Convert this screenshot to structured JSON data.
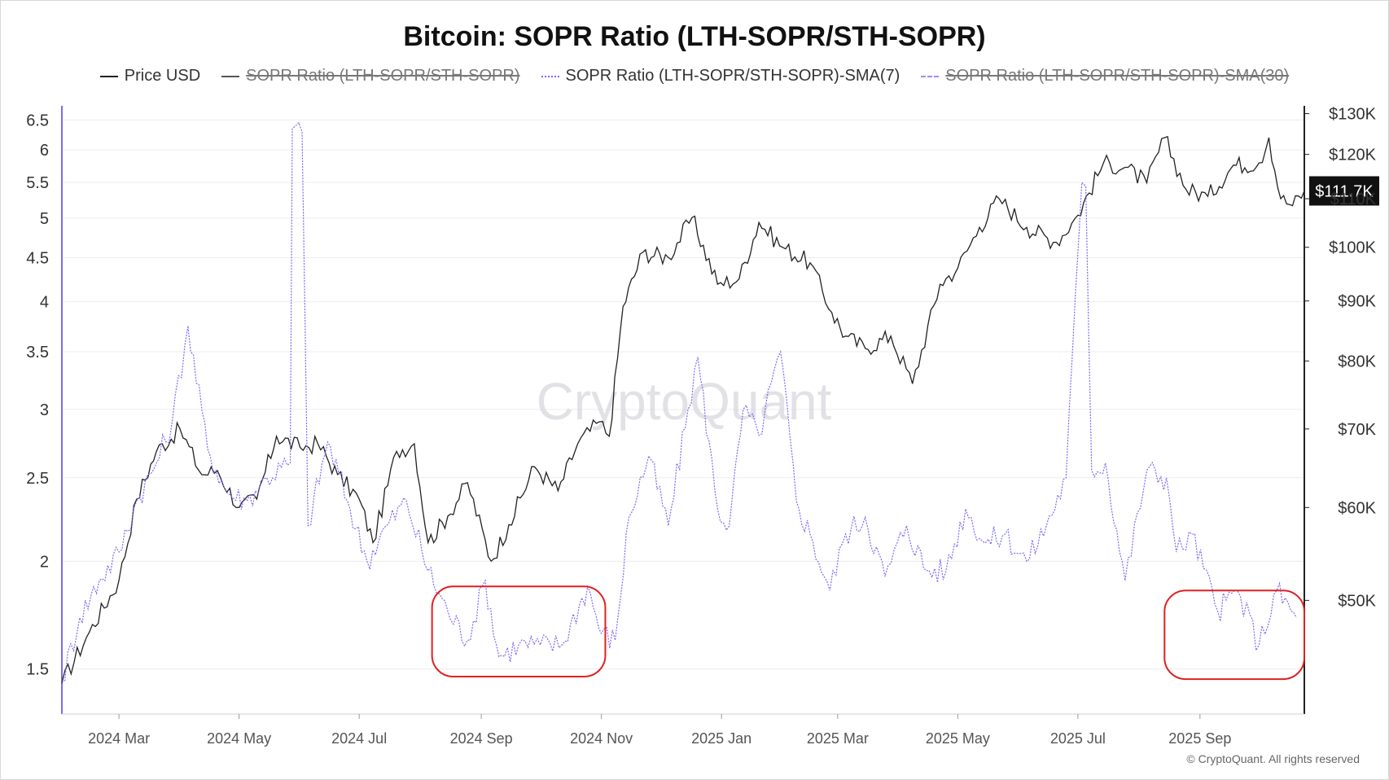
{
  "title": "Bitcoin: SOPR Ratio (LTH-SOPR/STH-SOPR)",
  "legend": [
    {
      "label": "Price USD",
      "style": "solid",
      "color": "#222222",
      "hidden": false
    },
    {
      "label": "SOPR Ratio (LTH-SOPR/STH-SOPR)",
      "style": "solid",
      "color": "#555555",
      "hidden": true
    },
    {
      "label": "SOPR Ratio (LTH-SOPR/STH-SOPR)-SMA(7)",
      "style": "dotted",
      "color": "#7b6cf0",
      "hidden": false
    },
    {
      "label": "SOPR Ratio (LTH-SOPR/STH-SOPR)-SMA(30)",
      "style": "dashed",
      "color": "#9a90f0",
      "hidden": true
    }
  ],
  "watermark": "CryptoQuant",
  "copyright": "© CryptoQuant. All rights reserved",
  "colors": {
    "price": "#222222",
    "sopr": "#7b6cf0",
    "highlight": "#e02020",
    "left_axis": "#7b6cf0",
    "right_axis": "#222222"
  },
  "chart_data": {
    "type": "line",
    "title": "Bitcoin: SOPR Ratio (LTH-SOPR/STH-SOPR)",
    "x_axis": {
      "tick_labels": [
        "2024 Mar",
        "2024 May",
        "2024 Jul",
        "2024 Sep",
        "2024 Nov",
        "2025 Jan",
        "2025 Mar",
        "2025 May",
        "2025 Jul",
        "2025 Sep"
      ],
      "tick_dates": [
        "2024-03-01",
        "2024-05-01",
        "2024-07-01",
        "2024-09-01",
        "2024-11-01",
        "2025-01-01",
        "2025-03-01",
        "2025-05-01",
        "2025-07-01",
        "2025-09-01"
      ],
      "range": [
        "2024-02-01",
        "2025-10-24"
      ]
    },
    "y_left": {
      "scale": "log",
      "range": [
        1.33,
        6.75
      ],
      "tick_labels": [
        "1.5",
        "2",
        "2.5",
        "3",
        "3.5",
        "4",
        "4.5",
        "5",
        "5.5",
        "6",
        "6.5"
      ],
      "tick_values": [
        1.5,
        2,
        2.5,
        3,
        3.5,
        4,
        4.5,
        5,
        5.5,
        6,
        6.5
      ]
    },
    "y_right": {
      "scale": "log",
      "range": [
        40000,
        132000
      ],
      "tick_labels": [
        "$50K",
        "$60K",
        "$70K",
        "$80K",
        "$90K",
        "$100K",
        "$110K",
        "$120K",
        "$130K"
      ],
      "tick_values": [
        50000,
        60000,
        70000,
        80000,
        90000,
        100000,
        110000,
        120000,
        130000
      ],
      "current_label": "$111.7K",
      "current_value": 111700
    },
    "grid": "horizontal",
    "legend_position": "top",
    "series": [
      {
        "name": "Price USD",
        "axis": "right",
        "x": [
          "2024-02-01",
          "2024-02-15",
          "2024-03-01",
          "2024-03-10",
          "2024-03-20",
          "2024-04-01",
          "2024-04-12",
          "2024-04-20",
          "2024-05-01",
          "2024-05-10",
          "2024-05-20",
          "2024-06-01",
          "2024-06-10",
          "2024-06-20",
          "2024-07-01",
          "2024-07-08",
          "2024-07-20",
          "2024-07-29",
          "2024-08-05",
          "2024-08-15",
          "2024-08-25",
          "2024-09-06",
          "2024-09-15",
          "2024-09-28",
          "2024-10-10",
          "2024-10-20",
          "2024-10-31",
          "2024-11-05",
          "2024-11-12",
          "2024-11-22",
          "2024-12-05",
          "2024-12-17",
          "2024-12-30",
          "2025-01-10",
          "2025-01-20",
          "2025-02-01",
          "2025-02-15",
          "2025-02-26",
          "2025-03-05",
          "2025-03-15",
          "2025-03-28",
          "2025-04-08",
          "2025-04-22",
          "2025-05-01",
          "2025-05-12",
          "2025-05-22",
          "2025-06-05",
          "2025-06-20",
          "2025-07-01",
          "2025-07-14",
          "2025-07-25",
          "2025-08-05",
          "2025-08-14",
          "2025-08-25",
          "2025-09-05",
          "2025-09-18",
          "2025-10-01",
          "2025-10-06",
          "2025-10-12",
          "2025-10-18",
          "2025-10-24"
        ],
        "values": [
          42500,
          47000,
          52000,
          61000,
          67000,
          70000,
          64000,
          64500,
          60000,
          61000,
          69000,
          67500,
          68000,
          64000,
          61000,
          56000,
          67000,
          68000,
          56000,
          59000,
          63000,
          54000,
          58000,
          65000,
          62000,
          68000,
          71000,
          69000,
          89000,
          99000,
          98000,
          106000,
          93000,
          94000,
          105000,
          100000,
          97000,
          88000,
          84000,
          82000,
          84000,
          76500,
          93000,
          96000,
          104000,
          110000,
          104000,
          101000,
          106500,
          118000,
          117000,
          113500,
          124000,
          112000,
          110500,
          117500,
          118000,
          124000,
          110000,
          108500,
          111700
        ]
      },
      {
        "name": "SOPR Ratio (LTH-SOPR/STH-SOPR)-SMA(7)",
        "axis": "left",
        "x": [
          "2024-02-01",
          "2024-02-10",
          "2024-02-20",
          "2024-03-01",
          "2024-03-10",
          "2024-03-20",
          "2024-03-28",
          "2024-04-05",
          "2024-04-15",
          "2024-04-25",
          "2024-05-05",
          "2024-05-15",
          "2024-05-27",
          "2024-05-28",
          "2024-06-02",
          "2024-06-05",
          "2024-06-15",
          "2024-06-25",
          "2024-07-05",
          "2024-07-15",
          "2024-07-25",
          "2024-08-05",
          "2024-08-15",
          "2024-08-25",
          "2024-09-03",
          "2024-09-10",
          "2024-09-20",
          "2024-10-01",
          "2024-10-12",
          "2024-10-25",
          "2024-11-01",
          "2024-11-08",
          "2024-11-15",
          "2024-11-25",
          "2024-12-05",
          "2024-12-15",
          "2024-12-20",
          "2024-12-30",
          "2025-01-05",
          "2025-01-12",
          "2025-01-20",
          "2025-01-31",
          "2025-02-08",
          "2025-02-15",
          "2025-02-25",
          "2025-03-05",
          "2025-03-15",
          "2025-03-25",
          "2025-04-05",
          "2025-04-15",
          "2025-04-25",
          "2025-05-05",
          "2025-05-15",
          "2025-05-25",
          "2025-06-05",
          "2025-06-15",
          "2025-06-25",
          "2025-07-03",
          "2025-07-05",
          "2025-07-08",
          "2025-07-15",
          "2025-07-25",
          "2025-08-05",
          "2025-08-15",
          "2025-08-20",
          "2025-08-28",
          "2025-09-10",
          "2025-09-20",
          "2025-10-01",
          "2025-10-10",
          "2025-10-20"
        ],
        "values": [
          1.45,
          1.72,
          1.9,
          2.05,
          2.35,
          2.6,
          2.9,
          3.75,
          2.7,
          2.4,
          2.35,
          2.5,
          2.6,
          6.35,
          6.3,
          2.2,
          2.75,
          2.35,
          2.0,
          2.2,
          2.35,
          1.95,
          1.75,
          1.62,
          1.9,
          1.55,
          1.6,
          1.6,
          1.6,
          1.87,
          1.65,
          1.62,
          2.25,
          2.65,
          2.2,
          3.0,
          3.45,
          2.3,
          2.2,
          3.0,
          2.8,
          3.5,
          2.35,
          2.15,
          1.85,
          2.15,
          2.25,
          1.92,
          2.2,
          1.95,
          1.95,
          2.3,
          2.1,
          2.15,
          2.0,
          2.2,
          2.5,
          5.5,
          5.45,
          2.55,
          2.6,
          1.9,
          2.55,
          2.5,
          2.05,
          2.15,
          1.75,
          1.85,
          1.6,
          1.85,
          1.72
        ]
      }
    ],
    "highlights": [
      {
        "x_range": [
          "2024-08-07",
          "2024-11-03"
        ],
        "y_range": [
          1.47,
          1.87
        ],
        "color": "#e02020"
      },
      {
        "x_range": [
          "2025-08-14",
          "2025-10-24"
        ],
        "y_range": [
          1.46,
          1.85
        ],
        "color": "#e02020"
      }
    ]
  }
}
